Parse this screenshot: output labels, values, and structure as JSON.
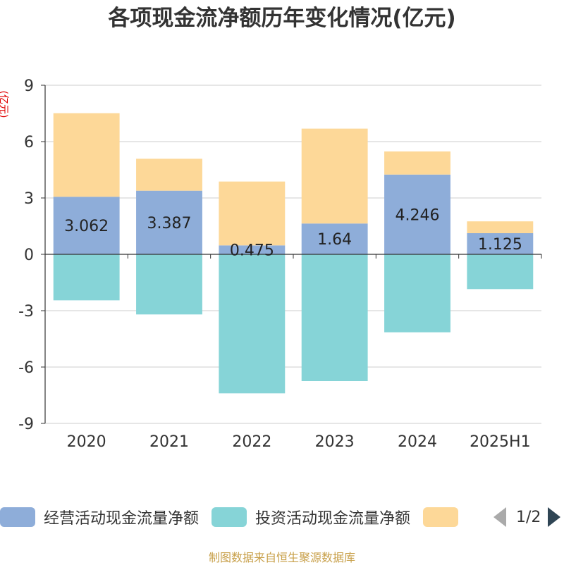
{
  "title": "各项现金流净额历年变化情况(亿元)",
  "y_unit": "(亿元)",
  "source": "制图数据来自恒生聚源数据库",
  "legend": {
    "items": [
      {
        "label": "经营活动现金流量净额",
        "color": "#8eadd9"
      },
      {
        "label": "投资活动现金流量净额",
        "color": "#86d4d7"
      },
      {
        "label": "",
        "color": "#fdd898"
      }
    ],
    "page": "1/2"
  },
  "chart_data": {
    "type": "bar",
    "stacked": true,
    "categories": [
      "2020",
      "2021",
      "2022",
      "2023",
      "2024",
      "2025H1"
    ],
    "ylim": [
      -9,
      9
    ],
    "yticks": [
      9,
      6,
      3,
      0,
      -3,
      -6,
      -9
    ],
    "grid": true,
    "series": [
      {
        "name": "经营活动现金流量净额",
        "values": [
          3.062,
          3.387,
          0.475,
          1.64,
          4.246,
          1.125
        ],
        "color": "#8eadd9",
        "labels": [
          "3.062",
          "3.387",
          "0.475",
          "1.64",
          "4.246",
          "1.125"
        ]
      },
      {
        "name": "投资活动现金流量净额",
        "values": [
          -2.45,
          -3.2,
          -7.4,
          -6.75,
          -4.15,
          -1.85
        ],
        "color": "#86d4d7"
      },
      {
        "name": "",
        "values": [
          4.45,
          1.7,
          3.4,
          5.05,
          1.23,
          0.63
        ],
        "color": "#fdd898"
      }
    ]
  }
}
